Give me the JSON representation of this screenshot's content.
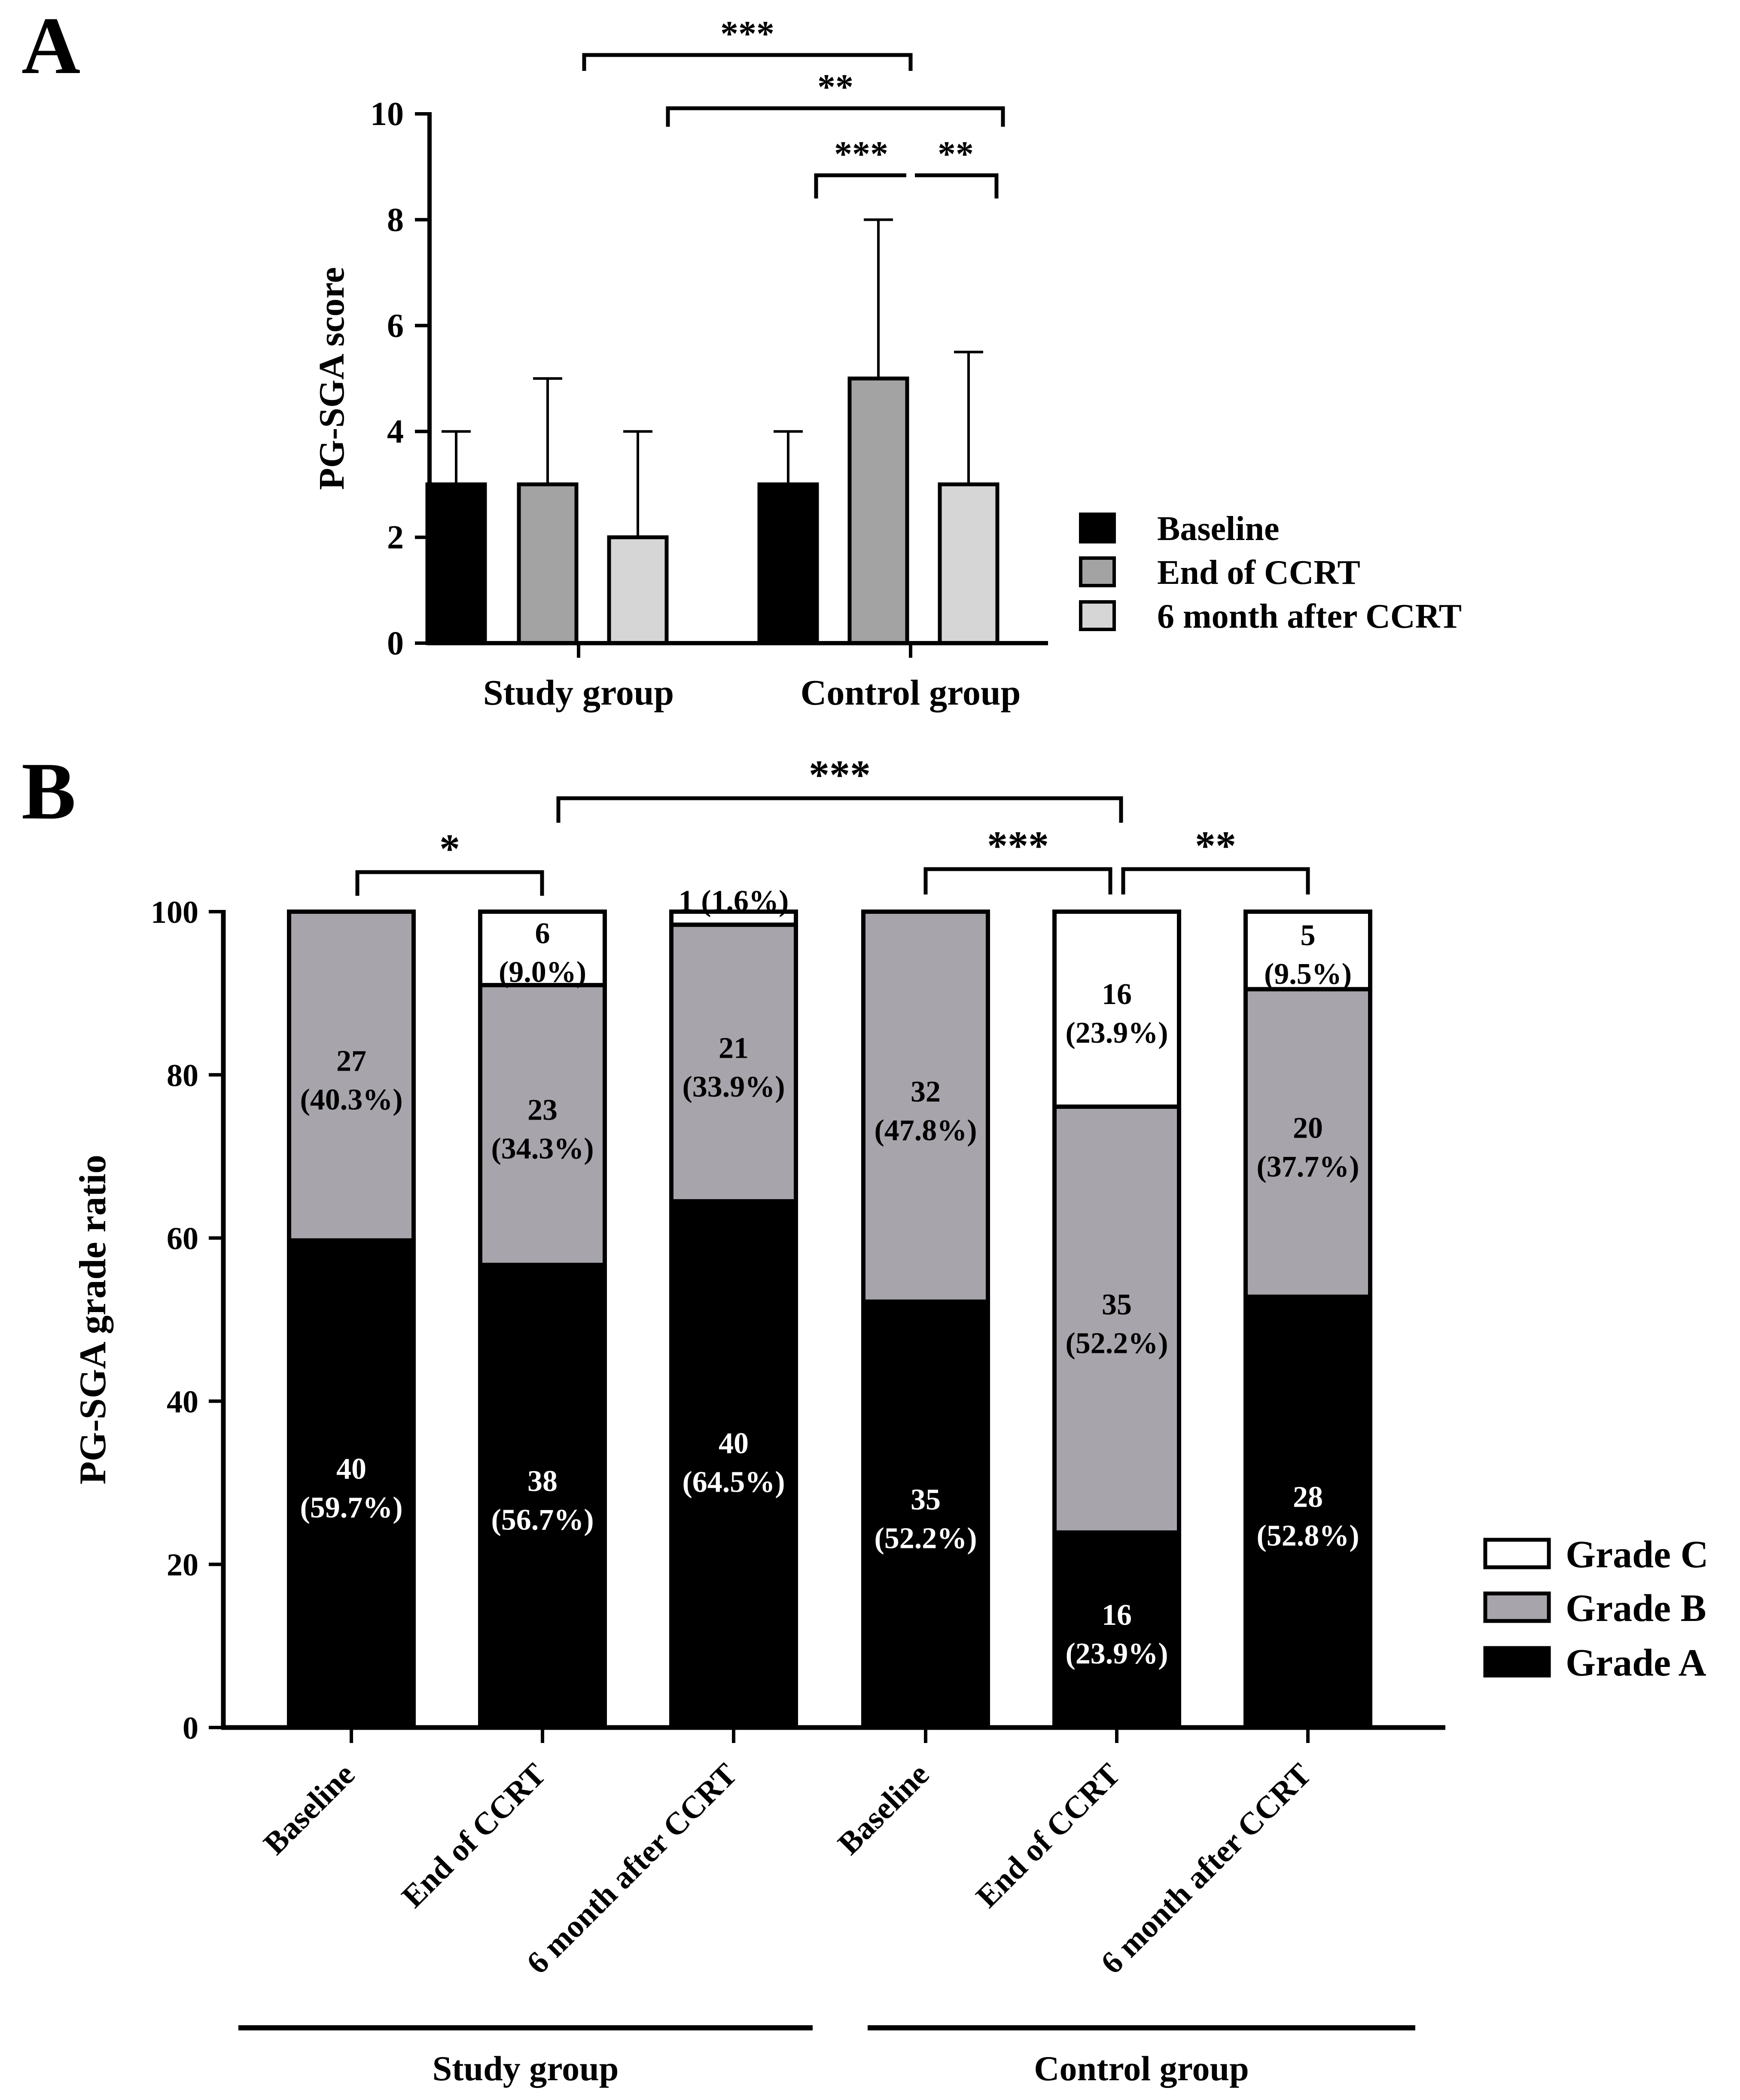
{
  "chart_data": [
    {
      "panel": "A",
      "type": "bar",
      "ylabel": "PG-SGA score",
      "ylim": [
        0,
        10
      ],
      "yticks": [
        0,
        2,
        4,
        6,
        8,
        10
      ],
      "categories": [
        "Study group",
        "Control group"
      ],
      "series": [
        {
          "name": "Baseline",
          "color": "#000000",
          "values": [
            3,
            3
          ],
          "error_upper": [
            4,
            4
          ]
        },
        {
          "name": "End of CCRT",
          "color": "#a3a3a3",
          "values": [
            3,
            5
          ],
          "error_upper": [
            5,
            8
          ]
        },
        {
          "name": "6 month after CCRT",
          "color": "#d6d6d6",
          "values": [
            2,
            3
          ],
          "error_upper": [
            4,
            5.5
          ]
        }
      ],
      "legend_position": "right",
      "significance": [
        {
          "from": "Study group / Baseline",
          "to": "Control group / End of CCRT",
          "label": "***"
        },
        {
          "from": "Study group / 6 month after CCRT",
          "to": "Control group / 6 month after CCRT",
          "label": "**"
        },
        {
          "from": "Control group / Baseline",
          "to": "Control group / End of CCRT",
          "label": "***"
        },
        {
          "from": "Control group / End of CCRT",
          "to": "Control group / 6 month after CCRT",
          "label": "**"
        }
      ]
    },
    {
      "panel": "B",
      "type": "bar",
      "stacked": true,
      "ylabel": "PG-SGA grade ratio",
      "ylim": [
        0,
        100
      ],
      "yticks": [
        0,
        20,
        40,
        60,
        80,
        100
      ],
      "categories": [
        "Baseline",
        "End of CCRT",
        "6 month after CCRT",
        "Baseline",
        "End of CCRT",
        "6 month after CCRT"
      ],
      "groups": [
        {
          "label": "Study group",
          "category_indices": [
            0,
            1,
            2
          ]
        },
        {
          "label": "Control group",
          "category_indices": [
            3,
            4,
            5
          ]
        }
      ],
      "series": [
        {
          "name": "Grade A",
          "color": "#000000",
          "values": [
            59.7,
            56.7,
            64.5,
            52.2,
            23.9,
            52.8
          ],
          "labels": [
            [
              "40",
              "(59.7%)"
            ],
            [
              "38",
              "(56.7%)"
            ],
            [
              "40",
              "(64.5%)"
            ],
            [
              "35",
              "(52.2%)"
            ],
            [
              "16",
              "(23.9%)"
            ],
            [
              "28",
              "(52.8%)"
            ]
          ]
        },
        {
          "name": "Grade B",
          "color": "#a7a5ab",
          "values": [
            40.3,
            34.3,
            33.9,
            47.8,
            52.2,
            37.7
          ],
          "labels": [
            [
              "27",
              "(40.3%)"
            ],
            [
              "23",
              "(34.3%)"
            ],
            [
              "21",
              "(33.9%)"
            ],
            [
              "32",
              "(47.8%)"
            ],
            [
              "35",
              "(52.2%)"
            ],
            [
              "20",
              "(37.7%)"
            ]
          ]
        },
        {
          "name": "Grade C",
          "color": "#ffffff",
          "values": [
            0,
            9.0,
            1.6,
            0,
            23.9,
            9.5
          ],
          "labels": [
            null,
            [
              "6",
              "(9.0%)"
            ],
            [
              "1 (1.6%)"
            ],
            null,
            [
              "16",
              "(23.9%)"
            ],
            [
              "5",
              "(9.5%)"
            ]
          ]
        }
      ],
      "legend_position": "right",
      "significance": [
        {
          "from": 0,
          "to": 1,
          "label": "*"
        },
        {
          "from": 1,
          "to": 4,
          "label": "***"
        },
        {
          "from": 3,
          "to": 4,
          "label": "***"
        },
        {
          "from": 4,
          "to": 5,
          "label": "**"
        }
      ]
    }
  ],
  "panels": {
    "a": "A",
    "b": "B"
  }
}
